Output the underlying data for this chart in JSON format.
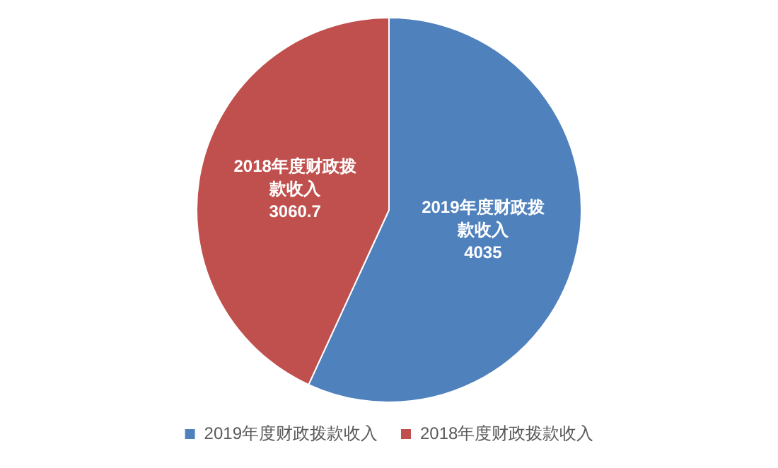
{
  "chart_data": {
    "type": "pie",
    "categories": [
      "2019年度财政拨款收入",
      "2018年度财政拨款收入"
    ],
    "values": [
      4035,
      3060.7
    ],
    "colors": [
      "#4f81bd",
      "#c0504d"
    ],
    "data_labels": true,
    "legend": "bottom"
  }
}
